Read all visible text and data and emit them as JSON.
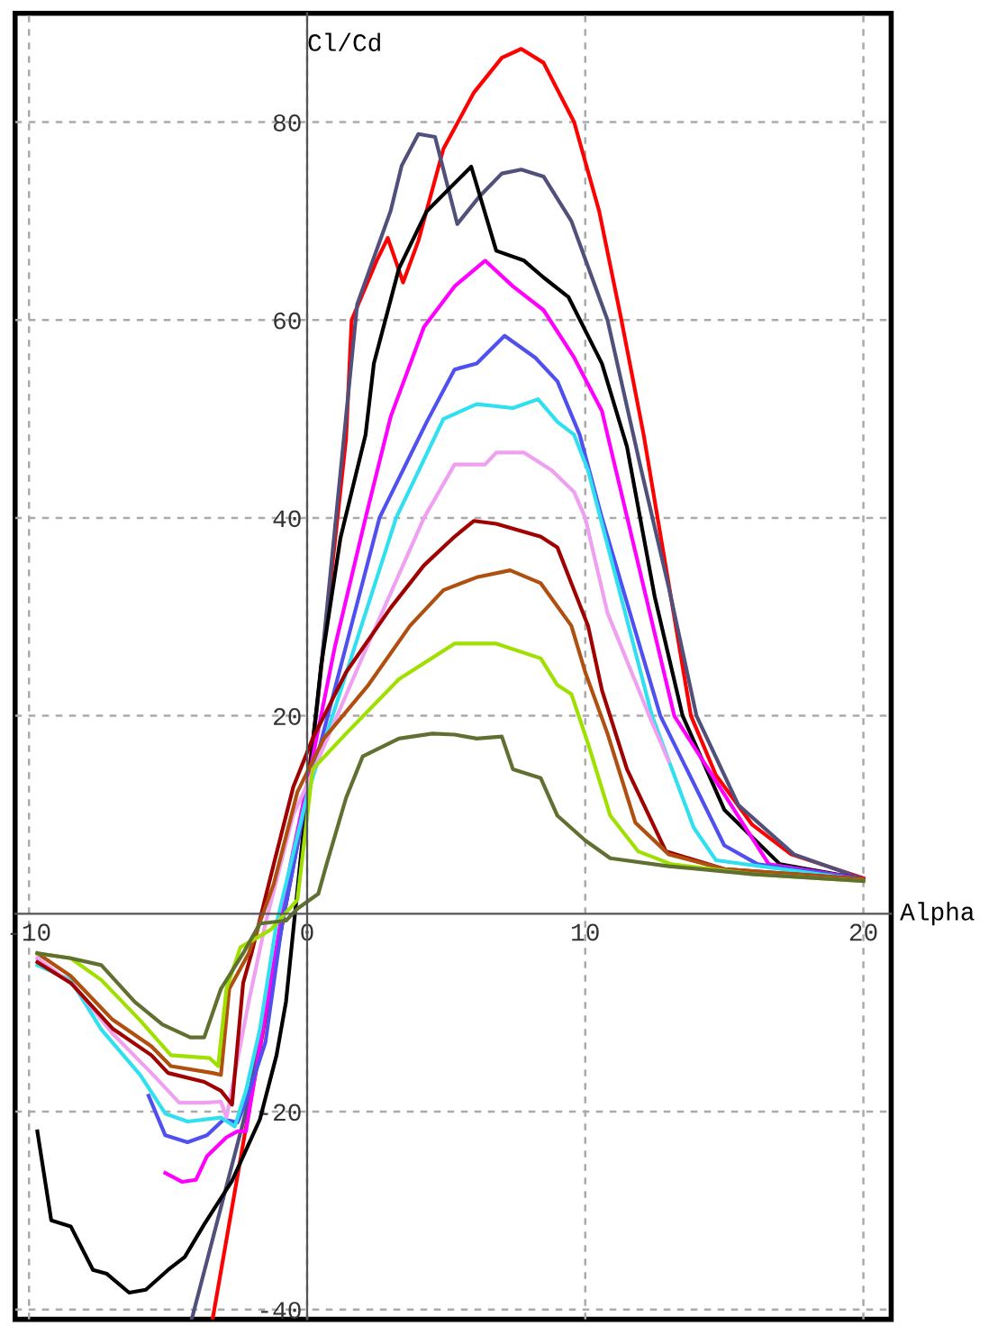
{
  "chart_data": {
    "type": "line",
    "xlabel": "Alpha",
    "ylabel": "Cl/Cd",
    "xlim": [
      -10.5,
      21
    ],
    "ylim": [
      -41,
      91
    ],
    "xticks": [
      -10,
      0,
      10,
      20
    ],
    "yticks": [
      -40,
      -20,
      20,
      40,
      60,
      80
    ],
    "grid": true,
    "line_style": "solid",
    "marker": "none",
    "series": [
      {
        "color": "#ff0000",
        "x": [
          -3.4,
          -2.1,
          0,
          0.35,
          1.4,
          1.6,
          2.5,
          2.9,
          3.45,
          4.0,
          4.9,
          6,
          7,
          7.7,
          8.5,
          9.6,
          10.5,
          11.3,
          12.1,
          12.6,
          13.8,
          14.7,
          16,
          17.4,
          20
        ],
        "values": [
          -41,
          -20,
          13,
          20.8,
          48,
          60,
          66,
          68.3,
          63.8,
          68,
          77.3,
          83,
          86.5,
          87.4,
          86,
          80,
          71,
          60,
          48.4,
          40,
          20,
          14,
          9,
          6,
          3.6
        ]
      },
      {
        "color": "#50507a",
        "x": [
          -4.15,
          -2.2,
          0,
          0.4,
          1.8,
          3.0,
          3.4,
          4.0,
          4.6,
          5.4,
          6.2,
          7.0,
          7.7,
          8.5,
          9.5,
          10.8,
          12,
          13,
          14,
          15.5,
          17.5,
          20
        ],
        "values": [
          -41,
          -20,
          12,
          22,
          61.6,
          71,
          75.6,
          78.8,
          78.5,
          69.7,
          72.5,
          74.8,
          75.2,
          74.5,
          70,
          60,
          45,
          33,
          20,
          11,
          6,
          3.5
        ]
      },
      {
        "color": "#000000",
        "x": [
          -9.7,
          -9.2,
          -8.5,
          -7.7,
          -7.2,
          -6.4,
          -5.8,
          -5.0,
          -4.4,
          -3.7,
          -2.7,
          -1.7,
          -1.1,
          -0.76,
          0,
          0.5,
          1.2,
          2.1,
          2.4,
          3.3,
          4.3,
          5.9,
          6.8,
          7.8,
          8.5,
          9.4,
          10.6,
          11.5,
          12.5,
          13.5,
          15,
          17,
          20
        ],
        "values": [
          -22,
          -31,
          -31.6,
          -36,
          -36.4,
          -38.3,
          -38,
          -36,
          -34.7,
          -31.4,
          -27,
          -20.8,
          -14.3,
          -8.9,
          12,
          25,
          38,
          48.4,
          55.6,
          65.2,
          71,
          75.5,
          67,
          66,
          64.3,
          62.3,
          55.6,
          47.2,
          32,
          20,
          10.5,
          5,
          3.5
        ]
      },
      {
        "color": "#ff00ff",
        "x": [
          -5.1,
          -4.5,
          -4.0,
          -3.6,
          -2.9,
          -2.5,
          -2.2,
          -1.5,
          -0.6,
          0,
          1.0,
          2.1,
          3.0,
          4.2,
          5.3,
          6.4,
          7.4,
          8.5,
          9.6,
          10.6,
          10.8,
          13.2,
          16.6,
          20
        ],
        "values": [
          -26.2,
          -27.1,
          -26.9,
          -24.5,
          -22.6,
          -22,
          -22,
          -10,
          5,
          13,
          27,
          40,
          50.2,
          59.3,
          63.4,
          66,
          63.4,
          61,
          56.2,
          50.8,
          48.4,
          20,
          5,
          3.5
        ]
      },
      {
        "color": "#5050f0",
        "x": [
          -5.7,
          -5.1,
          -4.3,
          -3.6,
          -3.0,
          -2.5,
          -2.2,
          -1.5,
          -0.9,
          0,
          1.3,
          2.6,
          4.3,
          5.3,
          6.1,
          7.1,
          8.2,
          9.0,
          9.8,
          10.6,
          12.7,
          15,
          16.2,
          20
        ],
        "values": [
          -18.4,
          -22.4,
          -23.1,
          -22.4,
          -20.8,
          -21.1,
          -19,
          -13,
          -1,
          12,
          26,
          40,
          49.7,
          55,
          55.6,
          58.4,
          56.2,
          53.8,
          48.4,
          40,
          20,
          6.9,
          5,
          3.5
        ]
      },
      {
        "color": "#30e0f0",
        "x": [
          -9.7,
          -8.5,
          -7.4,
          -6.0,
          -5.1,
          -4.3,
          -3.1,
          -2.6,
          -2.2,
          -1.7,
          -1.1,
          0,
          1.6,
          3.2,
          4.9,
          6.1,
          7.4,
          8.3,
          9.0,
          9.6,
          10.1,
          12.4,
          13.9,
          14.7,
          20
        ],
        "values": [
          -5.2,
          -6.7,
          -11.7,
          -16.3,
          -20.2,
          -21,
          -20.6,
          -21.5,
          -17.9,
          -11.7,
          -1,
          12,
          26,
          40,
          50,
          51.5,
          51.1,
          52,
          49.7,
          48.4,
          44.8,
          20,
          8.7,
          5.4,
          3.4
        ]
      },
      {
        "color": "#f0a0f0",
        "x": [
          -9.7,
          -8.4,
          -7,
          -5.6,
          -4.6,
          -3.7,
          -3.1,
          -2.9,
          -2.1,
          -1.5,
          -0.5,
          0,
          2.0,
          4.2,
          5.3,
          6.4,
          6.8,
          7.8,
          8.8,
          9.6,
          10,
          10.8,
          12.3,
          13.0
        ],
        "values": [
          -4.5,
          -7.2,
          -12.1,
          -16.1,
          -19.1,
          -19.1,
          -19,
          -20.6,
          -8.9,
          -1,
          10,
          13,
          26,
          40,
          45.4,
          45.4,
          46.6,
          46.6,
          44.8,
          42.6,
          40,
          30.4,
          20,
          15.4
        ]
      },
      {
        "color": "#a00000",
        "x": [
          -9.7,
          -8.5,
          -7,
          -5.6,
          -5,
          -3.7,
          -3.1,
          -2.7,
          -2.3,
          -2.0,
          -1.2,
          -0.5,
          0.2,
          1.4,
          3,
          4.2,
          5.3,
          6.0,
          6.8,
          8.4,
          9,
          9.5,
          10.1,
          10.6,
          11.5,
          12.9,
          15,
          20
        ],
        "values": [
          -4.9,
          -7,
          -11.6,
          -14.3,
          -16.1,
          -17,
          -17.9,
          -19.3,
          -7,
          -4,
          5,
          12.8,
          17.7,
          24.4,
          30.9,
          35.2,
          38.1,
          39.7,
          39.4,
          38.1,
          37,
          33.4,
          29.1,
          22.6,
          14.6,
          6.3,
          4.5,
          3.5
        ]
      },
      {
        "color": "#b05010",
        "x": [
          -9.7,
          -8.5,
          -7,
          -5.6,
          -4.9,
          -3.4,
          -3.1,
          -2.8,
          -2.1,
          -1.2,
          -0.35,
          0.6,
          2.2,
          3.7,
          4.9,
          6.1,
          7.3,
          8.4,
          9.5,
          10,
          10.8,
          11.8,
          13,
          15,
          20
        ],
        "values": [
          -4,
          -6.3,
          -10.7,
          -13.4,
          -15.4,
          -16.1,
          -16.3,
          -7.6,
          -4,
          3,
          12.3,
          17.7,
          23.1,
          29.1,
          32.7,
          34,
          34.7,
          33.4,
          29.1,
          24.4,
          18.2,
          9.2,
          6,
          4.5,
          3.5
        ]
      },
      {
        "color": "#a0e000",
        "x": [
          -9.7,
          -8.5,
          -7.4,
          -6,
          -4.9,
          -3.5,
          -3.2,
          -2.9,
          -2.4,
          -1.3,
          -0.35,
          0.2,
          1.4,
          3.3,
          5.3,
          6.8,
          8.4,
          9,
          9.5,
          10.1,
          10.9,
          11.9,
          13.1,
          16,
          20
        ],
        "values": [
          -4,
          -4.5,
          -6.7,
          -10.8,
          -14.3,
          -14.6,
          -15.4,
          -7.6,
          -3.4,
          -1.6,
          1.4,
          14.6,
          18.2,
          23.7,
          27.3,
          27.3,
          25.8,
          23.1,
          22.2,
          17.2,
          9.9,
          6.3,
          5,
          4,
          3.3
        ]
      },
      {
        "color": "#607030",
        "x": [
          -9.7,
          -8.5,
          -7.4,
          -6.2,
          -5.2,
          -4.2,
          -3.7,
          -3.1,
          -2.3,
          -1.7,
          -0.76,
          -0.35,
          0.4,
          0.7,
          1.4,
          2,
          3.3,
          4.5,
          5.3,
          6.1,
          7,
          7.4,
          8.4,
          9,
          10,
          10.9,
          13,
          16,
          20
        ],
        "values": [
          -4,
          -4.5,
          -5.2,
          -8.9,
          -11.2,
          -12.5,
          -12.5,
          -7.6,
          -4,
          -1,
          -0.7,
          0.5,
          2,
          5,
          11.7,
          15.9,
          17.7,
          18.2,
          18.1,
          17.7,
          17.9,
          14.6,
          13.7,
          9.9,
          7.4,
          5.6,
          4.8,
          4,
          3.3
        ]
      }
    ]
  }
}
